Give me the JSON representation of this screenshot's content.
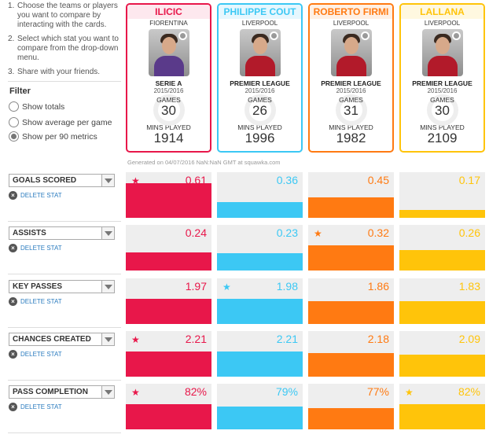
{
  "instructions": [
    {
      "num": "1.",
      "text": "Choose the teams or players you want to compare by interacting with the cards."
    },
    {
      "num": "2.",
      "text": "Select which stat you want to compare from the drop-down menu."
    },
    {
      "num": "3.",
      "text": "Share with your friends."
    }
  ],
  "filter": {
    "title": "Filter",
    "options": [
      "Show totals",
      "Show average per game",
      "Show per 90 metrics"
    ],
    "selected": 2
  },
  "labels": {
    "games": "GAMES",
    "mins_played": "MINS PLAYED",
    "delete_stat": "DELETE STAT",
    "generated": "Generated on 04/07/2016 NaN:NaN GMT at squawka.com"
  },
  "players": [
    {
      "name": "ILICIC",
      "team": "FIORENTINA",
      "league": "SERIE A",
      "season": "2015/2016",
      "games": "30",
      "mins": "1914",
      "color": "#e8174a",
      "shirt": "#5a3a8a"
    },
    {
      "name": "PHILIPPE COUT",
      "team": "LIVERPOOL",
      "league": "PREMIER LEAGUE",
      "season": "2015/2016",
      "games": "26",
      "mins": "1996",
      "color": "#3cc8f4",
      "shirt": "#b21a2a"
    },
    {
      "name": "ROBERTO FIRMI",
      "team": "LIVERPOOL",
      "league": "PREMIER LEAGUE",
      "season": "2015/2016",
      "games": "31",
      "mins": "1982",
      "color": "#ff7a12",
      "shirt": "#b21a2a"
    },
    {
      "name": "LALLANA",
      "team": "LIVERPOOL",
      "league": "PREMIER LEAGUE",
      "season": "2015/2016",
      "games": "30",
      "mins": "2109",
      "color": "#ffc40a",
      "shirt": "#b21a2a"
    }
  ],
  "stats": [
    {
      "name": "GOALS SCORED",
      "values": [
        "0.61",
        "0.36",
        "0.45",
        "0.17"
      ],
      "fill": [
        0.75,
        0.35,
        0.45,
        0.17
      ],
      "star": 0
    },
    {
      "name": "ASSISTS",
      "values": [
        "0.24",
        "0.23",
        "0.32",
        "0.26"
      ],
      "fill": [
        0.4,
        0.38,
        0.55,
        0.45
      ],
      "star": 2
    },
    {
      "name": "KEY PASSES",
      "values": [
        "1.97",
        "1.98",
        "1.86",
        "1.83"
      ],
      "fill": [
        0.55,
        0.55,
        0.5,
        0.5
      ],
      "star": 1
    },
    {
      "name": "CHANCES CREATED",
      "values": [
        "2.21",
        "2.21",
        "2.18",
        "2.09"
      ],
      "fill": [
        0.55,
        0.55,
        0.52,
        0.48
      ],
      "star": 0
    },
    {
      "name": "PASS COMPLETION",
      "values": [
        "82%",
        "79%",
        "77%",
        "82%"
      ],
      "fill": [
        0.55,
        0.5,
        0.47,
        0.55
      ],
      "star": 0,
      "star2": 3
    }
  ],
  "icons": {
    "star": "star-icon",
    "delete": "close-circle-icon",
    "caret": "chevron-down-icon",
    "badge": "team-crest-icon"
  }
}
